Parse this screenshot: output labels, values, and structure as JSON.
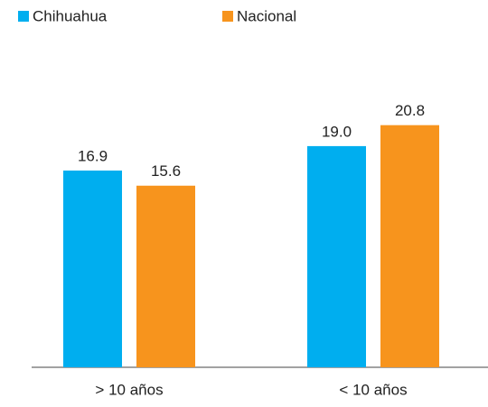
{
  "chart_data": {
    "type": "bar",
    "categories": [
      "> 10 años",
      "< 10 años"
    ],
    "series": [
      {
        "name": "Chihuahua",
        "color": "#00aeef",
        "values": [
          16.9,
          19.0
        ],
        "value_labels": [
          "16.9",
          "19.0"
        ]
      },
      {
        "name": "Nacional",
        "color": "#f7941d",
        "values": [
          15.6,
          20.8
        ],
        "value_labels": [
          "15.6",
          "20.8"
        ]
      }
    ]
  }
}
